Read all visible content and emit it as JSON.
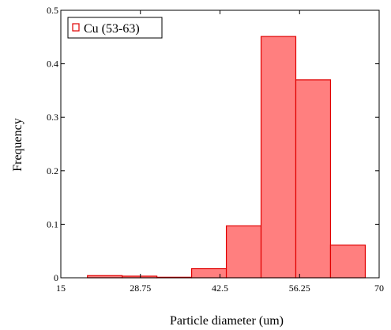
{
  "chart_data": {
    "type": "bar",
    "xlabel": "Particle diameter (um)",
    "ylabel": "Frequency",
    "xlim": [
      15,
      70
    ],
    "ylim": [
      0,
      0.5
    ],
    "x_ticks": [
      "15",
      "28.75",
      "42.5",
      "56.25",
      "70"
    ],
    "y_ticks": [
      "0",
      "0.1",
      "0.2",
      "0.3",
      "0.4",
      "0.5"
    ],
    "legend": {
      "position": "top-left",
      "entries": [
        "Cu (53-63)"
      ]
    },
    "grid": false,
    "colors": {
      "bar_fill": "#ff7f7f",
      "bar_stroke": "#e00000"
    },
    "series": [
      {
        "name": "Cu (53-63)",
        "bins": [
          {
            "x0": 19.6,
            "x1": 25.6,
            "value": 0.004
          },
          {
            "x0": 25.6,
            "x1": 31.6,
            "value": 0.003
          },
          {
            "x0": 31.6,
            "x1": 37.6,
            "value": 0.001
          },
          {
            "x0": 37.6,
            "x1": 43.6,
            "value": 0.017
          },
          {
            "x0": 43.6,
            "x1": 49.6,
            "value": 0.097
          },
          {
            "x0": 49.6,
            "x1": 55.6,
            "value": 0.451
          },
          {
            "x0": 55.6,
            "x1": 61.6,
            "value": 0.37
          },
          {
            "x0": 61.6,
            "x1": 67.6,
            "value": 0.061
          }
        ]
      }
    ]
  }
}
